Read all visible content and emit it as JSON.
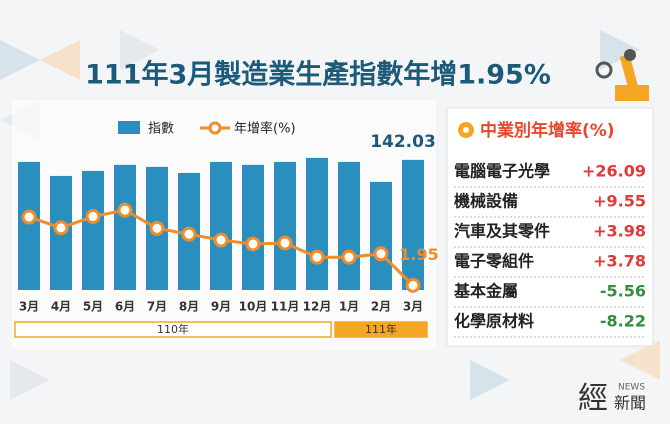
{
  "title": "111年3月製造業生產指數年增1.95%",
  "chart_data": {
    "type": "combo",
    "categories": [
      "3月",
      "4月",
      "5月",
      "6月",
      "7月",
      "8月",
      "9月",
      "10月",
      "11月",
      "12月",
      "1月",
      "2月",
      "3月"
    ],
    "groups": [
      {
        "label": "110年",
        "count": 10,
        "color": "#ffffff"
      },
      {
        "label": "111年",
        "count": 3,
        "color": "#f5a623"
      }
    ],
    "series": [
      {
        "name": "指數",
        "type": "bar",
        "color": "#2a8fbf",
        "values": [
          139.8,
          124.5,
          130.0,
          136.6,
          134.4,
          127.8,
          139.8,
          136.6,
          139.8,
          144.2,
          139.8,
          118.0,
          142.03
        ]
      },
      {
        "name": "年增率(%)",
        "type": "line",
        "axis": "y2",
        "color": "#f08c2a",
        "values": [
          15.9,
          13.7,
          16.0,
          17.3,
          13.6,
          12.4,
          11.2,
          10.4,
          10.6,
          7.7,
          7.7,
          8.4,
          1.95
        ]
      }
    ],
    "label_last": true,
    "ylim": [
      0,
      155
    ],
    "y2lim": [
      1,
      30
    ]
  },
  "panel": {
    "title": "中業別年增率(%)",
    "positive_color": "#e03a3a",
    "negative_color": "#2f8f3a",
    "items": [
      {
        "name": "電腦電子光學",
        "value": 26.09,
        "value_label": "+26.09"
      },
      {
        "name": "機械設備",
        "value": 9.55,
        "value_label": "+9.55"
      },
      {
        "name": "汽車及其零件",
        "value": 3.98,
        "value_label": "+3.98"
      },
      {
        "name": "電子零組件",
        "value": 3.78,
        "value_label": "+3.78"
      },
      {
        "name": "基本金屬",
        "value": -5.56,
        "value_label": "-5.56"
      },
      {
        "name": "化學原材料",
        "value": -8.22,
        "value_label": "-8.22"
      }
    ]
  },
  "logo": {
    "main": "經",
    "tag": "NEWS",
    "sub": "新聞"
  }
}
